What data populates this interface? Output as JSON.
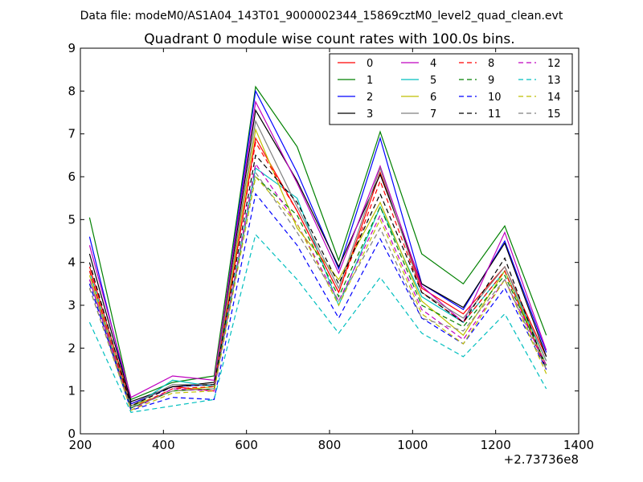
{
  "header": {
    "data_file": "Data file: modeM0/AS1A04_143T01_9000002344_15869cztM0_level2_quad_clean.evt"
  },
  "chart_data": {
    "type": "line",
    "title": "Quadrant 0 module wise count rates with 100.0s bins.",
    "xlabel": "",
    "ylabel": "",
    "xlim": [
      200,
      1400
    ],
    "ylim": [
      0,
      9
    ],
    "x_offset_label": "+2.73736e8",
    "xticks": [
      200,
      400,
      600,
      800,
      1000,
      1200,
      1400
    ],
    "yticks": [
      0,
      1,
      2,
      3,
      4,
      5,
      6,
      7,
      8,
      9
    ],
    "grid": false,
    "legend_position": "top-right",
    "x": [
      222,
      322,
      422,
      522,
      622,
      722,
      822,
      922,
      1022,
      1122,
      1222,
      1322
    ],
    "series": [
      {
        "name": "0",
        "color": "#ff0000",
        "dash": "solid",
        "values": [
          3.9,
          0.7,
          1.1,
          1.0,
          6.9,
          5.2,
          3.3,
          6.1,
          3.4,
          2.8,
          3.9,
          1.8
        ]
      },
      {
        "name": "1",
        "color": "#008000",
        "dash": "solid",
        "values": [
          5.05,
          0.8,
          1.2,
          1.35,
          8.1,
          6.7,
          4.05,
          7.05,
          4.2,
          3.5,
          4.85,
          2.3
        ]
      },
      {
        "name": "2",
        "color": "#0000ff",
        "dash": "solid",
        "values": [
          4.6,
          0.7,
          1.1,
          1.15,
          8.0,
          6.1,
          3.85,
          6.9,
          3.5,
          2.9,
          4.5,
          1.9
        ]
      },
      {
        "name": "3",
        "color": "#000000",
        "dash": "solid",
        "values": [
          4.2,
          0.75,
          1.1,
          1.2,
          7.55,
          5.9,
          3.9,
          6.05,
          3.5,
          2.95,
          4.45,
          1.8
        ]
      },
      {
        "name": "4",
        "color": "#bf00bf",
        "dash": "solid",
        "values": [
          4.4,
          0.85,
          1.35,
          1.25,
          7.75,
          5.85,
          3.75,
          6.25,
          3.45,
          2.6,
          4.7,
          1.95
        ]
      },
      {
        "name": "5",
        "color": "#00bfbf",
        "dash": "solid",
        "values": [
          3.8,
          0.6,
          1.25,
          1.1,
          6.2,
          5.5,
          3.0,
          5.3,
          3.2,
          2.6,
          3.8,
          1.7
        ]
      },
      {
        "name": "6",
        "color": "#bfbf00",
        "dash": "solid",
        "values": [
          3.7,
          0.65,
          1.0,
          1.1,
          7.1,
          4.8,
          3.6,
          5.4,
          3.1,
          2.3,
          3.8,
          1.6
        ]
      },
      {
        "name": "7",
        "color": "#808080",
        "dash": "solid",
        "values": [
          3.6,
          0.65,
          1.15,
          1.15,
          7.3,
          5.3,
          3.4,
          6.2,
          3.3,
          2.7,
          3.9,
          1.7
        ]
      },
      {
        "name": "8",
        "color": "#ff0000",
        "dash": "dashed",
        "values": [
          3.8,
          0.6,
          1.05,
          1.1,
          6.8,
          5.2,
          3.3,
          5.9,
          3.3,
          2.6,
          3.8,
          1.5
        ]
      },
      {
        "name": "9",
        "color": "#008000",
        "dash": "dashed",
        "values": [
          3.5,
          0.6,
          1.0,
          1.05,
          6.0,
          5.1,
          3.2,
          5.3,
          3.0,
          2.5,
          3.7,
          1.6
        ]
      },
      {
        "name": "10",
        "color": "#0000ff",
        "dash": "dashed",
        "values": [
          3.5,
          0.55,
          0.85,
          0.8,
          5.6,
          4.4,
          2.7,
          4.55,
          2.7,
          2.1,
          3.4,
          1.5
        ]
      },
      {
        "name": "11",
        "color": "#000000",
        "dash": "dashed",
        "values": [
          4.0,
          0.65,
          1.1,
          1.15,
          6.5,
          5.4,
          3.5,
          5.6,
          3.3,
          2.6,
          4.1,
          1.5
        ]
      },
      {
        "name": "12",
        "color": "#bf00bf",
        "dash": "dashed",
        "values": [
          3.6,
          0.55,
          1.05,
          1.0,
          6.3,
          4.9,
          3.1,
          5.1,
          2.9,
          2.2,
          3.6,
          1.6
        ]
      },
      {
        "name": "13",
        "color": "#00bfbf",
        "dash": "dashed",
        "values": [
          2.6,
          0.5,
          0.65,
          0.8,
          4.65,
          3.6,
          2.35,
          3.65,
          2.35,
          1.8,
          2.8,
          1.05
        ]
      },
      {
        "name": "14",
        "color": "#bfbf00",
        "dash": "dashed",
        "values": [
          3.4,
          0.55,
          0.95,
          1.0,
          6.0,
          4.9,
          3.0,
          5.0,
          2.8,
          2.1,
          3.6,
          1.4
        ]
      },
      {
        "name": "15",
        "color": "#808080",
        "dash": "dashed",
        "values": [
          3.4,
          0.6,
          1.0,
          1.05,
          6.1,
          4.7,
          3.1,
          4.8,
          2.7,
          2.4,
          3.6,
          1.5
        ]
      }
    ]
  }
}
